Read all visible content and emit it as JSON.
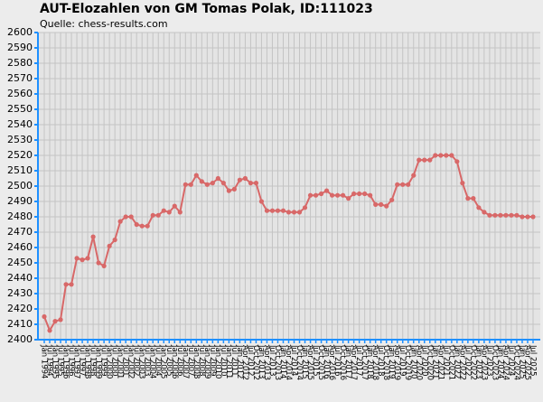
{
  "chart_data": {
    "type": "line",
    "title": "AUT-Elozahlen von GM Tomas Polak, ID:111023",
    "subtitle": "Quelle: chess-results.com",
    "categories": [
      "Jan 1994",
      "Jul 1994",
      "Jan 1995",
      "Jul 1995",
      "Jan 1996",
      "Jul 1996",
      "Jan 1997",
      "Jul 1997",
      "Jan 1998",
      "Jul 1998",
      "Jan 1999",
      "Jul 1999",
      "Jan 2000",
      "Jul 2000",
      "Jan 2001",
      "Jul 2001",
      "Jan 2002",
      "Jul 2002",
      "Jan 2003",
      "Jul 2003",
      "Jan 2004",
      "Jul 2004",
      "Jan 2005",
      "Jul 2005",
      "Jan 2006",
      "Jul 2006",
      "Jan 2007",
      "Jul 2007",
      "Jan 2008",
      "Jul 2008",
      "Jan 2009",
      "Jul 2009",
      "Jan 2010",
      "Jul 2010",
      "Jan 2011",
      "Jul 2011",
      "Jan 2012",
      "Apr 2012",
      "Jul 2012",
      "Oct 2012",
      "Jan 2013",
      "Apr 2013",
      "Jul 2013",
      "Oct 2013",
      "Jan 2014",
      "Apr 2014",
      "Jul 2014",
      "Oct 2014",
      "Jan 2015",
      "Apr 2015",
      "Jul 2015",
      "Oct 2015",
      "Jan 2016",
      "Apr 2016",
      "Jul 2016",
      "Oct 2016",
      "Jan 2017",
      "Apr 2017",
      "Jul 2017",
      "Oct 2017",
      "Jan 2018",
      "Apr 2018",
      "Jul 2018",
      "Oct 2018",
      "Jan 2019",
      "Apr 2019",
      "Jul 2019",
      "Oct 2019",
      "Jan 2020",
      "Apr 2020",
      "Jul 2020",
      "Oct 2020",
      "Jan 2021",
      "Apr 2021",
      "Jul 2021",
      "Oct 2021",
      "Jan 2022",
      "Apr 2022",
      "Jul 2022",
      "Oct 2022",
      "Jan 2023",
      "Apr 2023",
      "Jul 2023",
      "Oct 2023",
      "Jan 2024",
      "Apr 2024",
      "Jul 2024",
      "Oct 2024",
      "Jan 2025",
      "Apr 2025",
      "Jul 2025"
    ],
    "series": [
      {
        "color": "#d86868",
        "values": [
          2415,
          2406,
          2412,
          2413,
          2436,
          2436,
          2453,
          2452,
          2453,
          2467,
          2450,
          2448,
          2461,
          2465,
          2477,
          2480,
          2480,
          2475,
          2474,
          2474,
          2481,
          2481,
          2484,
          2483,
          2487,
          2483,
          2501,
          2501,
          2507,
          2503,
          2501,
          2502,
          2505,
          2502,
          2497,
          2498,
          2504,
          2505,
          2502,
          2502,
          2490,
          2484,
          2484,
          2484,
          2484,
          2483,
          2483,
          2483,
          2486,
          2494,
          2494,
          2495,
          2497,
          2494,
          2494,
          2494,
          2492,
          2495,
          2495,
          2495,
          2494,
          2488,
          2488,
          2487,
          2491,
          2501,
          2501,
          2501,
          2507,
          2517,
          2517,
          2517,
          2520,
          2520,
          2520,
          2520,
          2516,
          2502,
          2492,
          2492,
          2486,
          2483,
          2481,
          2481,
          2481,
          2481,
          2481,
          2481,
          2480,
          2480,
          2480
        ]
      }
    ],
    "ylim": [
      2400,
      2600
    ],
    "yticks": [
      2400,
      2410,
      2420,
      2430,
      2440,
      2450,
      2460,
      2470,
      2480,
      2490,
      2500,
      2510,
      2520,
      2530,
      2540,
      2550,
      2560,
      2570,
      2580,
      2590,
      2600
    ],
    "grid": true
  }
}
